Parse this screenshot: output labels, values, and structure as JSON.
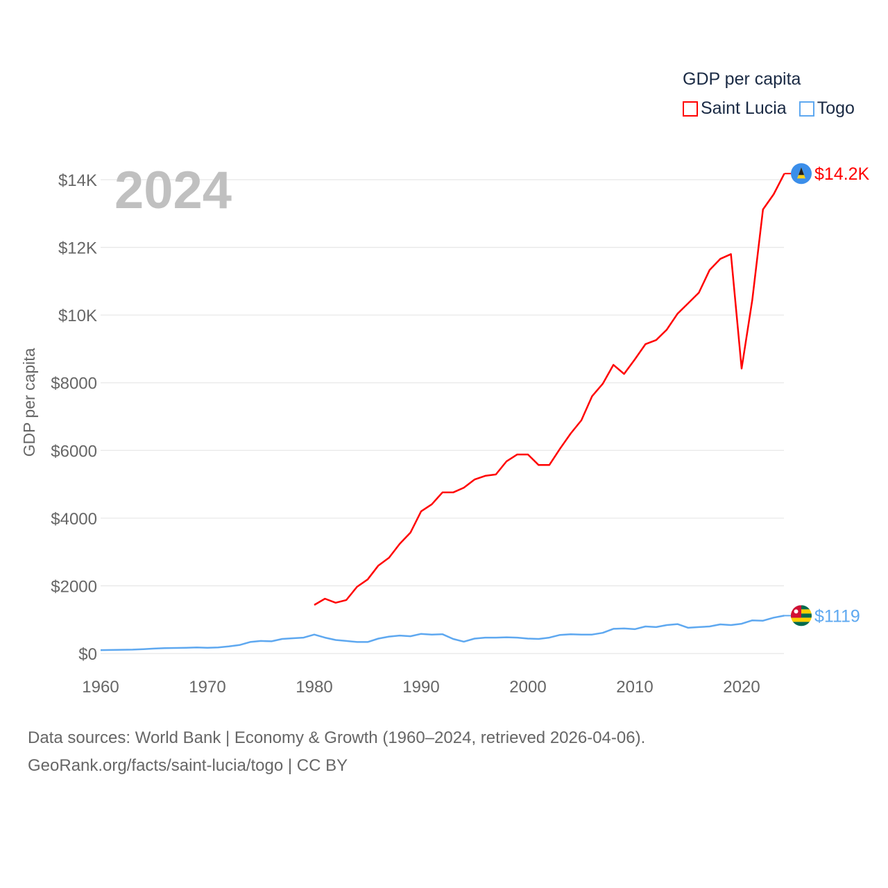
{
  "chart_data": {
    "type": "line",
    "title": "GDP per capita",
    "year_label": "2024",
    "ylabel": "GDP per capita",
    "xlabel": "",
    "xlim": [
      1960,
      2024
    ],
    "ylim": [
      0,
      14000
    ],
    "grid": true,
    "legend_position": "top-right",
    "x_ticks": [
      1960,
      1970,
      1980,
      1990,
      2000,
      2010,
      2020
    ],
    "x_tick_labels": [
      "1960",
      "1970",
      "1980",
      "1990",
      "2000",
      "2010",
      "2020"
    ],
    "y_ticks": [
      0,
      2000,
      4000,
      6000,
      8000,
      10000,
      12000,
      14000
    ],
    "y_tick_labels": [
      "$0",
      "$2000",
      "$4000",
      "$6000",
      "$8000",
      "$10K",
      "$12K",
      "$14K"
    ],
    "series": [
      {
        "name": "Saint Lucia",
        "color": "#ff0000",
        "end_label": "$14.2K",
        "flag_icon": "saint-lucia-flag-icon",
        "start_year": 1980,
        "values": [
          1435,
          1620,
          1500,
          1580,
          1970,
          2190,
          2600,
          2830,
          3240,
          3570,
          4200,
          4410,
          4760,
          4760,
          4900,
          5140,
          5250,
          5290,
          5680,
          5880,
          5880,
          5570,
          5570,
          6050,
          6500,
          6890,
          7600,
          7970,
          8530,
          8260,
          8690,
          9140,
          9260,
          9570,
          10040,
          10350,
          10660,
          11330,
          11660,
          11800,
          8420,
          10450,
          13120,
          13570,
          14180
        ]
      },
      {
        "name": "Togo",
        "color": "#5ea8f0",
        "end_label": "$1119",
        "flag_icon": "togo-flag-icon",
        "start_year": 1960,
        "values": [
          100,
          105,
          110,
          115,
          130,
          145,
          160,
          165,
          170,
          180,
          170,
          180,
          210,
          250,
          340,
          370,
          360,
          430,
          450,
          470,
          560,
          470,
          400,
          370,
          340,
          340,
          440,
          500,
          530,
          510,
          580,
          560,
          570,
          430,
          350,
          440,
          470,
          470,
          480,
          470,
          440,
          430,
          470,
          550,
          570,
          560,
          560,
          610,
          730,
          740,
          720,
          800,
          780,
          840,
          870,
          760,
          780,
          800,
          860,
          840,
          880,
          980,
          970,
          1060,
          1119
        ]
      }
    ]
  },
  "footer": {
    "line1": "Data sources: World Bank | Economy & Growth (1960–2024, retrieved 2026-04-06).",
    "line2": "GeoRank.org/facts/saint-lucia/togo | CC BY"
  }
}
